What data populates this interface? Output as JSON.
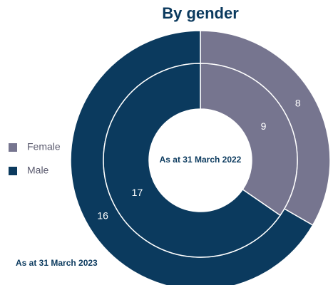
{
  "chart_data": {
    "type": "donut",
    "title": "By gender",
    "categories": [
      "Female",
      "Male"
    ],
    "colors": [
      "#76758f",
      "#0b3a5e"
    ],
    "series": [
      {
        "name": "As at 31 March 2023",
        "values": [
          8,
          16
        ]
      },
      {
        "name": "As at 31 March 2022",
        "values": [
          9,
          17
        ]
      }
    ],
    "legend": "left"
  }
}
